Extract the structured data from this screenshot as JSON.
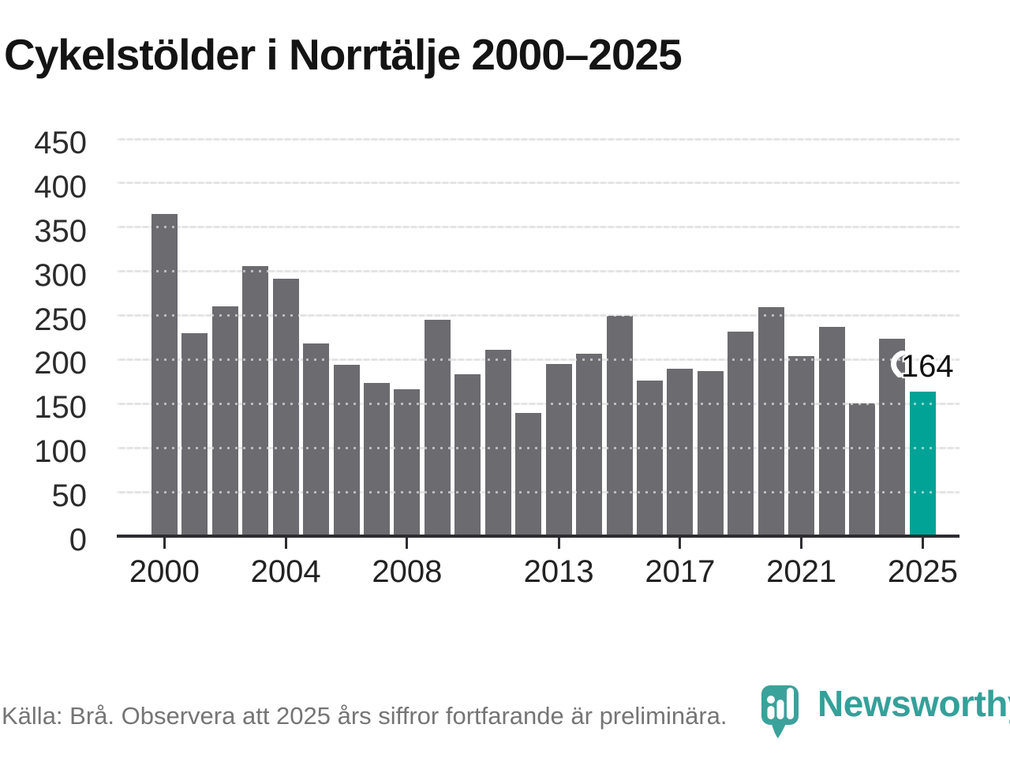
{
  "page": {
    "title": "Cykelstölder i Norrtälje 2000–2025"
  },
  "footer": {
    "source": "Källa: Brå. Observera att 2025 års siffror fortfarande är preliminära.",
    "brand": "Newsworthy"
  },
  "colors": {
    "bar": "#6b6b70",
    "highlight": "#00a396",
    "gridline": "#e4e4e6",
    "axis": "#2d2d31",
    "brand_teal": "#35a099",
    "tick_label": "#2b2b2b",
    "source_text": "#757575"
  },
  "chart_data": {
    "type": "bar",
    "title": "Cykelstölder i Norrtälje 2000–2025",
    "x": [
      2000,
      2001,
      2002,
      2003,
      2004,
      2005,
      2006,
      2007,
      2008,
      2009,
      2010,
      2011,
      2012,
      2013,
      2014,
      2015,
      2016,
      2017,
      2018,
      2019,
      2020,
      2021,
      2022,
      2023,
      2024,
      2025
    ],
    "values": [
      365,
      230,
      260,
      306,
      292,
      218,
      194,
      174,
      166,
      245,
      183,
      211,
      140,
      195,
      207,
      250,
      176,
      190,
      187,
      232,
      259,
      204,
      237,
      150,
      224,
      164
    ],
    "xlabel": "",
    "ylabel": "",
    "ylim": [
      0,
      450
    ],
    "ytick_step": 50,
    "xticks": [
      2000,
      2004,
      2008,
      2013,
      2017,
      2021,
      2025
    ],
    "grid": "horizontal",
    "legend": "none",
    "bar_color": "#6b6b70",
    "highlight": {
      "year": 2025,
      "value": 164,
      "label": "164",
      "color": "#00a396"
    },
    "source_note": "Källa: Brå. Observera att 2025 års siffror fortfarande är preliminära."
  }
}
